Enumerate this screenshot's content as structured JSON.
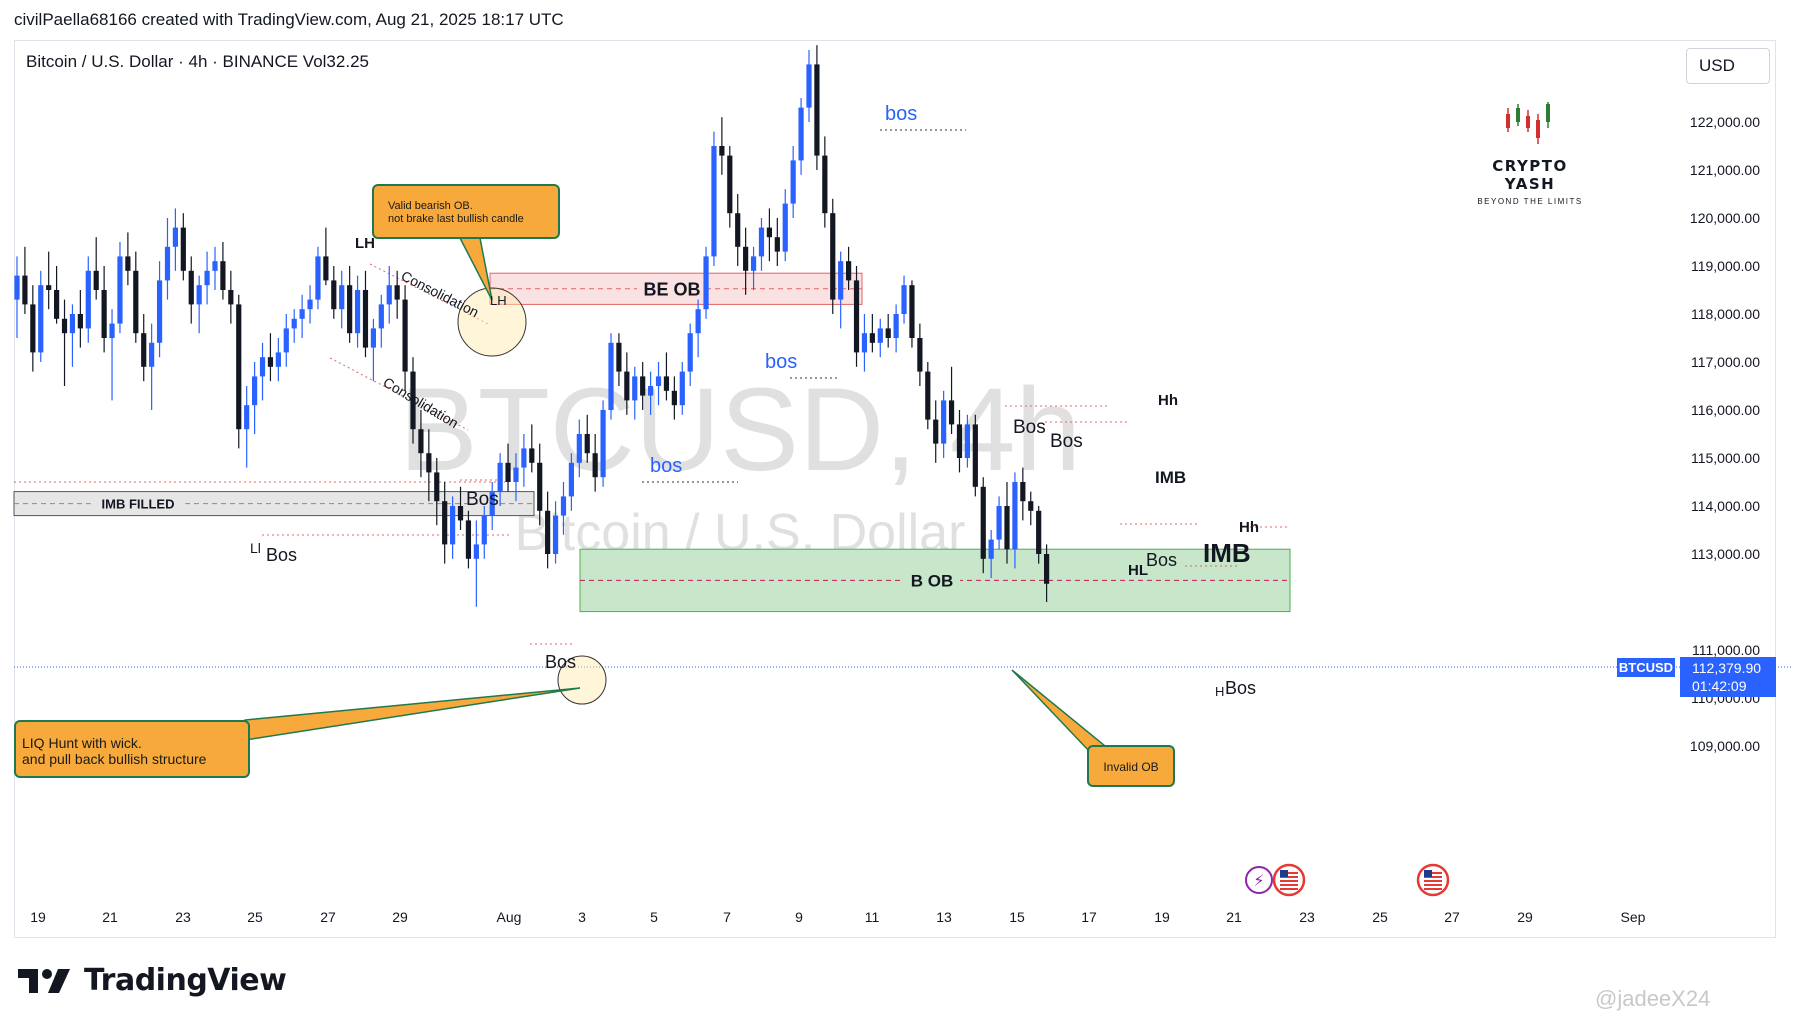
{
  "header": {
    "attribution": "civilPaella68166 created with TradingView.com, Aug 21, 2025 18:17 UTC"
  },
  "symbol": {
    "text": "Bitcoin / U.S. Dollar · 4h · BINANCE  Vol32.25"
  },
  "currency_button": "USD",
  "background_watermark": {
    "ticker": "BTCUSD, 4h",
    "name": "Bitcoin / U.S. Dollar"
  },
  "logo": {
    "name": "CRYPTO YASH",
    "tagline": "BEYOND THE LIMITS"
  },
  "brand": "TradingView",
  "footer_watermark": "@jadeeX24",
  "annotations": {
    "note_valid_ob": "Valid bearish OB.\nnot brake last bullish candle",
    "note_liq_hunt": "LIQ Hunt with wick.\nand pull back bullish structure",
    "note_invalid_ob": "Invalid OB",
    "zone_be_ob": "BE OB",
    "zone_b_ob": "B OB",
    "zone_imb_filled": "IMB FILLED",
    "consolidation": "Consolidation",
    "labels": [
      {
        "text": "LH"
      },
      {
        "text": "LH"
      },
      {
        "text": "Ll"
      },
      {
        "text": "Bos"
      },
      {
        "text": "Bos"
      },
      {
        "text": "Bos"
      },
      {
        "text": "bos"
      },
      {
        "text": "bos"
      },
      {
        "text": "bos"
      },
      {
        "text": "Bos"
      },
      {
        "text": "Bos"
      },
      {
        "text": "Hh"
      },
      {
        "text": "IMB"
      },
      {
        "text": "Bos"
      },
      {
        "text": "HL"
      },
      {
        "text": "IMB"
      },
      {
        "text": "Hh"
      },
      {
        "text": "H"
      },
      {
        "text": "Bos"
      }
    ]
  },
  "colors": {
    "up": "#2962ff",
    "down": "#131722",
    "bos_blue": "#2962ff",
    "be_ob_fill": "#fbe2e2",
    "be_ob_line": "#e06666",
    "b_ob_fill": "#c8e6c9",
    "b_ob_line": "#4caf50",
    "imb_fill": "#e6e6e6",
    "price_tag": "#2962ff",
    "callout": "#f7a93b",
    "callout_border": "#1e7a4e"
  },
  "price_tag": {
    "symbol": "BTCUSD",
    "price": "112,379.90",
    "countdown": "01:42:09"
  },
  "chart_data": {
    "type": "candlestick",
    "title": "Bitcoin / U.S. Dollar · 4h · BINANCE",
    "ylim": [
      108300,
      123700
    ],
    "y_ticks": [
      "122,000.00",
      "121,000.00",
      "120,000.00",
      "119,000.00",
      "118,000.00",
      "117,000.00",
      "116,000.00",
      "115,000.00",
      "114,000.00",
      "113,000.00",
      "111,000.00",
      "110,000.00",
      "109,000.00"
    ],
    "x_ticks": [
      "19",
      "21",
      "23",
      "25",
      "27",
      "29",
      "Aug",
      "3",
      "5",
      "7",
      "9",
      "11",
      "13",
      "15",
      "17",
      "19",
      "21",
      "23",
      "25",
      "27",
      "29",
      "Sep"
    ],
    "last_price": 112379.9,
    "zones": [
      {
        "name": "BE OB",
        "from": 118200,
        "to": 118850
      },
      {
        "name": "B OB",
        "from": 111800,
        "to": 113100
      },
      {
        "name": "IMB FILLED",
        "from": 113800,
        "to": 114300
      }
    ],
    "series": [
      {
        "values": [
          {
            "o": 118300,
            "h": 119200,
            "l": 117500,
            "c": 118800
          },
          {
            "o": 118800,
            "h": 119400,
            "l": 118000,
            "c": 118200
          },
          {
            "o": 118200,
            "h": 118600,
            "l": 116800,
            "c": 117200
          },
          {
            "o": 117200,
            "h": 118900,
            "l": 117000,
            "c": 118600
          },
          {
            "o": 118600,
            "h": 119300,
            "l": 118100,
            "c": 118500
          },
          {
            "o": 118500,
            "h": 119000,
            "l": 117800,
            "c": 117900
          },
          {
            "o": 117900,
            "h": 118300,
            "l": 116500,
            "c": 117600
          },
          {
            "o": 117600,
            "h": 118200,
            "l": 116900,
            "c": 118000
          },
          {
            "o": 118000,
            "h": 118500,
            "l": 117300,
            "c": 117700
          },
          {
            "o": 117700,
            "h": 119200,
            "l": 117400,
            "c": 118900
          },
          {
            "o": 118900,
            "h": 119600,
            "l": 118300,
            "c": 118500
          },
          {
            "o": 118500,
            "h": 119000,
            "l": 117200,
            "c": 117500
          },
          {
            "o": 117500,
            "h": 118100,
            "l": 116200,
            "c": 117800
          },
          {
            "o": 117800,
            "h": 119500,
            "l": 117600,
            "c": 119200
          },
          {
            "o": 119200,
            "h": 119700,
            "l": 118600,
            "c": 118900
          },
          {
            "o": 118900,
            "h": 119300,
            "l": 117400,
            "c": 117600
          },
          {
            "o": 117600,
            "h": 118000,
            "l": 116600,
            "c": 116900
          },
          {
            "o": 116900,
            "h": 117800,
            "l": 116000,
            "c": 117400
          },
          {
            "o": 117400,
            "h": 119100,
            "l": 117100,
            "c": 118700
          },
          {
            "o": 118700,
            "h": 120000,
            "l": 118300,
            "c": 119400
          },
          {
            "o": 119400,
            "h": 120200,
            "l": 118900,
            "c": 119800
          },
          {
            "o": 119800,
            "h": 120100,
            "l": 118700,
            "c": 118900
          },
          {
            "o": 118900,
            "h": 119200,
            "l": 117800,
            "c": 118200
          },
          {
            "o": 118200,
            "h": 118800,
            "l": 117600,
            "c": 118600
          },
          {
            "o": 118600,
            "h": 119300,
            "l": 118200,
            "c": 118900
          },
          {
            "o": 118900,
            "h": 119400,
            "l": 118500,
            "c": 119100
          },
          {
            "o": 119100,
            "h": 119500,
            "l": 118300,
            "c": 118500
          },
          {
            "o": 118500,
            "h": 118900,
            "l": 117800,
            "c": 118200
          },
          {
            "o": 118200,
            "h": 118400,
            "l": 115200,
            "c": 115600
          },
          {
            "o": 115600,
            "h": 116500,
            "l": 114800,
            "c": 116100
          },
          {
            "o": 116100,
            "h": 117000,
            "l": 115500,
            "c": 116700
          },
          {
            "o": 116700,
            "h": 117400,
            "l": 116200,
            "c": 117100
          },
          {
            "o": 117100,
            "h": 117600,
            "l": 116600,
            "c": 116900
          },
          {
            "o": 116900,
            "h": 117500,
            "l": 116600,
            "c": 117200
          },
          {
            "o": 117200,
            "h": 118000,
            "l": 116900,
            "c": 117700
          },
          {
            "o": 117700,
            "h": 118100,
            "l": 117400,
            "c": 117900
          },
          {
            "o": 117900,
            "h": 118400,
            "l": 117500,
            "c": 118100
          },
          {
            "o": 118100,
            "h": 118600,
            "l": 117800,
            "c": 118300
          },
          {
            "o": 118300,
            "h": 119400,
            "l": 118100,
            "c": 119200
          },
          {
            "o": 119200,
            "h": 119800,
            "l": 118600,
            "c": 118700
          },
          {
            "o": 118700,
            "h": 119000,
            "l": 117900,
            "c": 118100
          },
          {
            "o": 118100,
            "h": 118900,
            "l": 117700,
            "c": 118600
          },
          {
            "o": 118600,
            "h": 119000,
            "l": 117400,
            "c": 117600
          },
          {
            "o": 117600,
            "h": 118800,
            "l": 117300,
            "c": 118500
          },
          {
            "o": 118500,
            "h": 118900,
            "l": 117100,
            "c": 117300
          },
          {
            "o": 117300,
            "h": 117900,
            "l": 116600,
            "c": 117700
          },
          {
            "o": 117700,
            "h": 118400,
            "l": 117300,
            "c": 118200
          },
          {
            "o": 118200,
            "h": 119000,
            "l": 117800,
            "c": 118600
          },
          {
            "o": 118600,
            "h": 118900,
            "l": 117900,
            "c": 118300
          },
          {
            "o": 118300,
            "h": 118600,
            "l": 116400,
            "c": 116800
          },
          {
            "o": 116800,
            "h": 117100,
            "l": 115300,
            "c": 115600
          },
          {
            "o": 115600,
            "h": 116000,
            "l": 114600,
            "c": 115100
          },
          {
            "o": 115100,
            "h": 115600,
            "l": 114100,
            "c": 114700
          },
          {
            "o": 114700,
            "h": 115000,
            "l": 113600,
            "c": 114100
          },
          {
            "o": 114100,
            "h": 114500,
            "l": 112800,
            "c": 113200
          },
          {
            "o": 113200,
            "h": 114200,
            "l": 112900,
            "c": 114000
          },
          {
            "o": 114000,
            "h": 114400,
            "l": 113500,
            "c": 113700
          },
          {
            "o": 113700,
            "h": 113900,
            "l": 112700,
            "c": 112900
          },
          {
            "o": 112900,
            "h": 113700,
            "l": 111900,
            "c": 113200
          },
          {
            "o": 113200,
            "h": 114000,
            "l": 112900,
            "c": 113800
          },
          {
            "o": 113800,
            "h": 114500,
            "l": 113500,
            "c": 114300
          },
          {
            "o": 114300,
            "h": 115100,
            "l": 114000,
            "c": 114900
          },
          {
            "o": 114900,
            "h": 115300,
            "l": 114300,
            "c": 114500
          },
          {
            "o": 114500,
            "h": 115100,
            "l": 114100,
            "c": 114800
          },
          {
            "o": 114800,
            "h": 115500,
            "l": 114400,
            "c": 115200
          },
          {
            "o": 115200,
            "h": 115700,
            "l": 114700,
            "c": 114900
          },
          {
            "o": 114900,
            "h": 115300,
            "l": 113600,
            "c": 113900
          },
          {
            "o": 113900,
            "h": 114300,
            "l": 112700,
            "c": 113000
          },
          {
            "o": 113000,
            "h": 114100,
            "l": 112800,
            "c": 113800
          },
          {
            "o": 113800,
            "h": 114500,
            "l": 113400,
            "c": 114200
          },
          {
            "o": 114200,
            "h": 115100,
            "l": 113900,
            "c": 114900
          },
          {
            "o": 114900,
            "h": 115800,
            "l": 114600,
            "c": 115500
          },
          {
            "o": 115500,
            "h": 115900,
            "l": 114900,
            "c": 115100
          },
          {
            "o": 115100,
            "h": 115500,
            "l": 114300,
            "c": 114600
          },
          {
            "o": 114600,
            "h": 116200,
            "l": 114400,
            "c": 116000
          },
          {
            "o": 116000,
            "h": 117600,
            "l": 115800,
            "c": 117400
          },
          {
            "o": 117400,
            "h": 117600,
            "l": 116500,
            "c": 116800
          },
          {
            "o": 116800,
            "h": 117200,
            "l": 115900,
            "c": 116200
          },
          {
            "o": 116200,
            "h": 116900,
            "l": 115800,
            "c": 116700
          },
          {
            "o": 116700,
            "h": 117000,
            "l": 116000,
            "c": 116300
          },
          {
            "o": 116300,
            "h": 116800,
            "l": 115900,
            "c": 116500
          },
          {
            "o": 116500,
            "h": 117000,
            "l": 116100,
            "c": 116700
          },
          {
            "o": 116700,
            "h": 117200,
            "l": 116200,
            "c": 116400
          },
          {
            "o": 116400,
            "h": 116700,
            "l": 115800,
            "c": 116100
          },
          {
            "o": 116100,
            "h": 117000,
            "l": 115900,
            "c": 116800
          },
          {
            "o": 116800,
            "h": 117800,
            "l": 116500,
            "c": 117600
          },
          {
            "o": 117600,
            "h": 118300,
            "l": 117100,
            "c": 118100
          },
          {
            "o": 118100,
            "h": 119400,
            "l": 117900,
            "c": 119200
          },
          {
            "o": 119200,
            "h": 121800,
            "l": 119000,
            "c": 121500
          },
          {
            "o": 121500,
            "h": 122100,
            "l": 120900,
            "c": 121300
          },
          {
            "o": 121300,
            "h": 121500,
            "l": 119800,
            "c": 120100
          },
          {
            "o": 120100,
            "h": 120500,
            "l": 119000,
            "c": 119400
          },
          {
            "o": 119400,
            "h": 119800,
            "l": 118400,
            "c": 118900
          },
          {
            "o": 118900,
            "h": 119400,
            "l": 118500,
            "c": 119200
          },
          {
            "o": 119200,
            "h": 120000,
            "l": 118900,
            "c": 119800
          },
          {
            "o": 119800,
            "h": 120200,
            "l": 119100,
            "c": 119600
          },
          {
            "o": 119600,
            "h": 120000,
            "l": 119000,
            "c": 119300
          },
          {
            "o": 119300,
            "h": 120600,
            "l": 119100,
            "c": 120300
          },
          {
            "o": 120300,
            "h": 121500,
            "l": 120000,
            "c": 121200
          },
          {
            "o": 121200,
            "h": 122500,
            "l": 120900,
            "c": 122300
          },
          {
            "o": 122300,
            "h": 123500,
            "l": 122000,
            "c": 123200
          },
          {
            "o": 123200,
            "h": 123600,
            "l": 121000,
            "c": 121300
          },
          {
            "o": 121300,
            "h": 121700,
            "l": 119800,
            "c": 120100
          },
          {
            "o": 120100,
            "h": 120400,
            "l": 118000,
            "c": 118300
          },
          {
            "o": 118300,
            "h": 119300,
            "l": 117700,
            "c": 119100
          },
          {
            "o": 119100,
            "h": 119400,
            "l": 118500,
            "c": 118700
          },
          {
            "o": 118700,
            "h": 119000,
            "l": 116900,
            "c": 117200
          },
          {
            "o": 117200,
            "h": 118000,
            "l": 116800,
            "c": 117600
          },
          {
            "o": 117600,
            "h": 118000,
            "l": 117200,
            "c": 117400
          },
          {
            "o": 117400,
            "h": 117900,
            "l": 117100,
            "c": 117700
          },
          {
            "o": 117700,
            "h": 118000,
            "l": 117300,
            "c": 117500
          },
          {
            "o": 117500,
            "h": 118200,
            "l": 117200,
            "c": 118000
          },
          {
            "o": 118000,
            "h": 118800,
            "l": 117800,
            "c": 118600
          },
          {
            "o": 118600,
            "h": 118700,
            "l": 117300,
            "c": 117500
          },
          {
            "o": 117500,
            "h": 117800,
            "l": 116500,
            "c": 116800
          },
          {
            "o": 116800,
            "h": 117000,
            "l": 115600,
            "c": 115800
          },
          {
            "o": 115800,
            "h": 116200,
            "l": 114900,
            "c": 115300
          },
          {
            "o": 115300,
            "h": 116400,
            "l": 115000,
            "c": 116200
          },
          {
            "o": 116200,
            "h": 116900,
            "l": 115500,
            "c": 115700
          },
          {
            "o": 115700,
            "h": 116000,
            "l": 114700,
            "c": 115000
          },
          {
            "o": 115000,
            "h": 115900,
            "l": 114800,
            "c": 115700
          },
          {
            "o": 115700,
            "h": 115900,
            "l": 114200,
            "c": 114400
          },
          {
            "o": 114400,
            "h": 114600,
            "l": 112600,
            "c": 112900
          },
          {
            "o": 112900,
            "h": 113500,
            "l": 112500,
            "c": 113300
          },
          {
            "o": 113300,
            "h": 114200,
            "l": 113100,
            "c": 114000
          },
          {
            "o": 114000,
            "h": 114500,
            "l": 112800,
            "c": 113100
          },
          {
            "o": 113100,
            "h": 114700,
            "l": 112700,
            "c": 114500
          },
          {
            "o": 114500,
            "h": 114800,
            "l": 113700,
            "c": 114100
          },
          {
            "o": 114100,
            "h": 114300,
            "l": 113600,
            "c": 113900
          },
          {
            "o": 113900,
            "h": 114000,
            "l": 112800,
            "c": 113000
          },
          {
            "o": 113000,
            "h": 113200,
            "l": 112000,
            "c": 112380
          }
        ]
      }
    ]
  }
}
